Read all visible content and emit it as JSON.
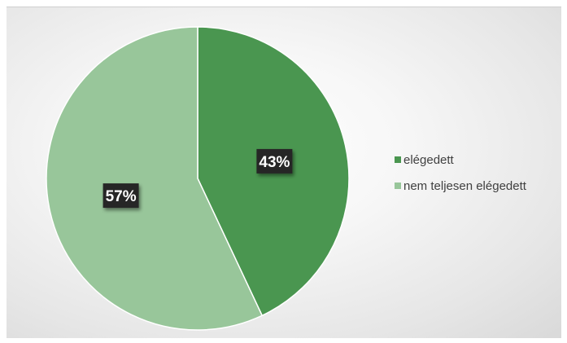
{
  "chart_data": {
    "type": "pie",
    "title": "",
    "slices": [
      {
        "label": "elégedett",
        "value": 43,
        "display": "43%",
        "color": "#4a9650"
      },
      {
        "label": "nem teljesen elégedett",
        "value": 57,
        "display": "57%",
        "color": "#98c69a"
      }
    ],
    "legend": {
      "placement": "right"
    },
    "label_box_color": "#262626"
  }
}
